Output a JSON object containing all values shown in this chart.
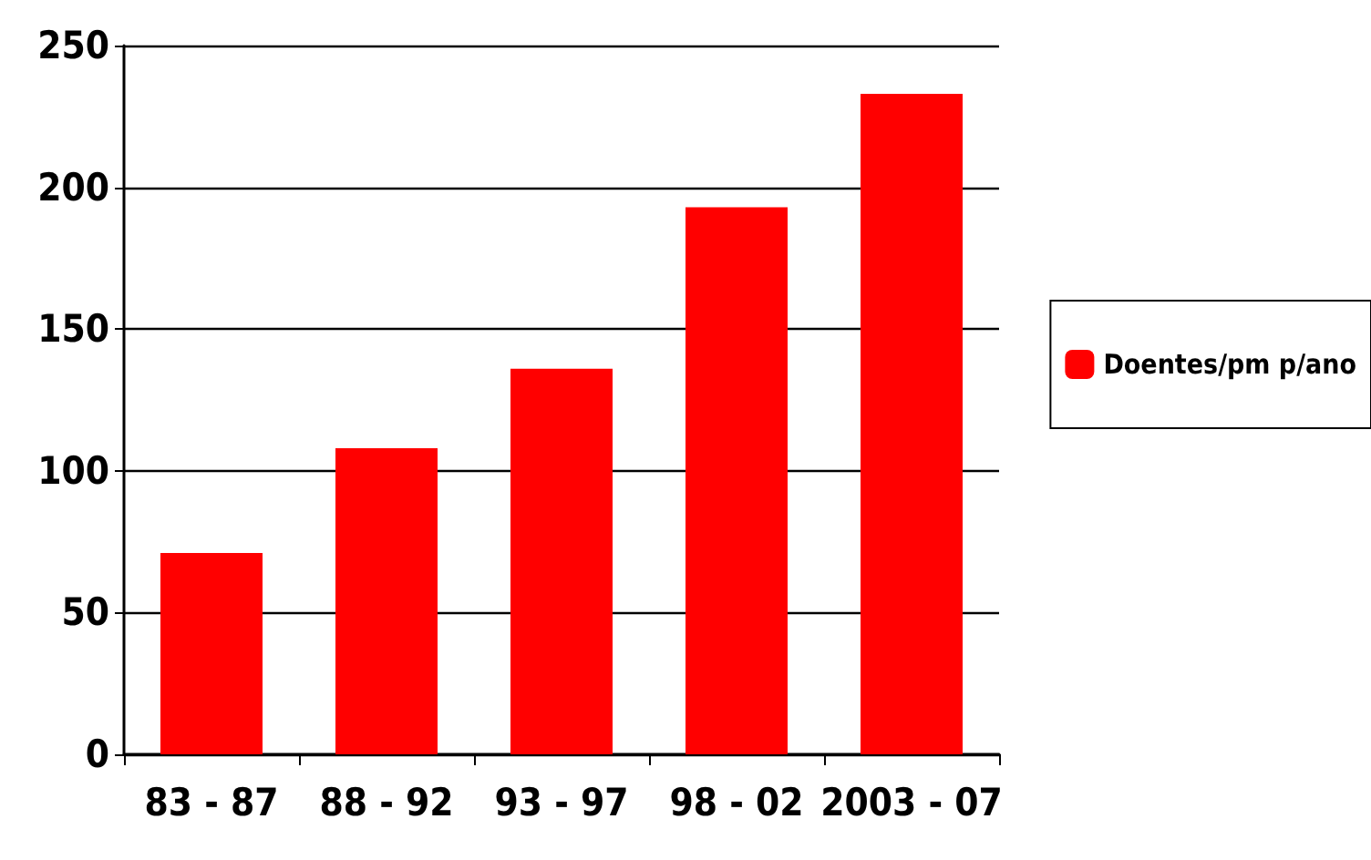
{
  "chart_data": {
    "type": "bar",
    "categories": [
      "83 - 87",
      "88 - 92",
      "93 - 97",
      "98 - 02",
      "2003 - 07"
    ],
    "series": [
      {
        "name": "Doentes/pm p/ano",
        "color": "#ff0000",
        "values": [
          71,
          108,
          136,
          193,
          233
        ]
      }
    ],
    "ylim": [
      0,
      250
    ],
    "yticks": [
      0,
      50,
      100,
      150,
      200,
      250
    ],
    "grid": "y",
    "legend": "right"
  }
}
